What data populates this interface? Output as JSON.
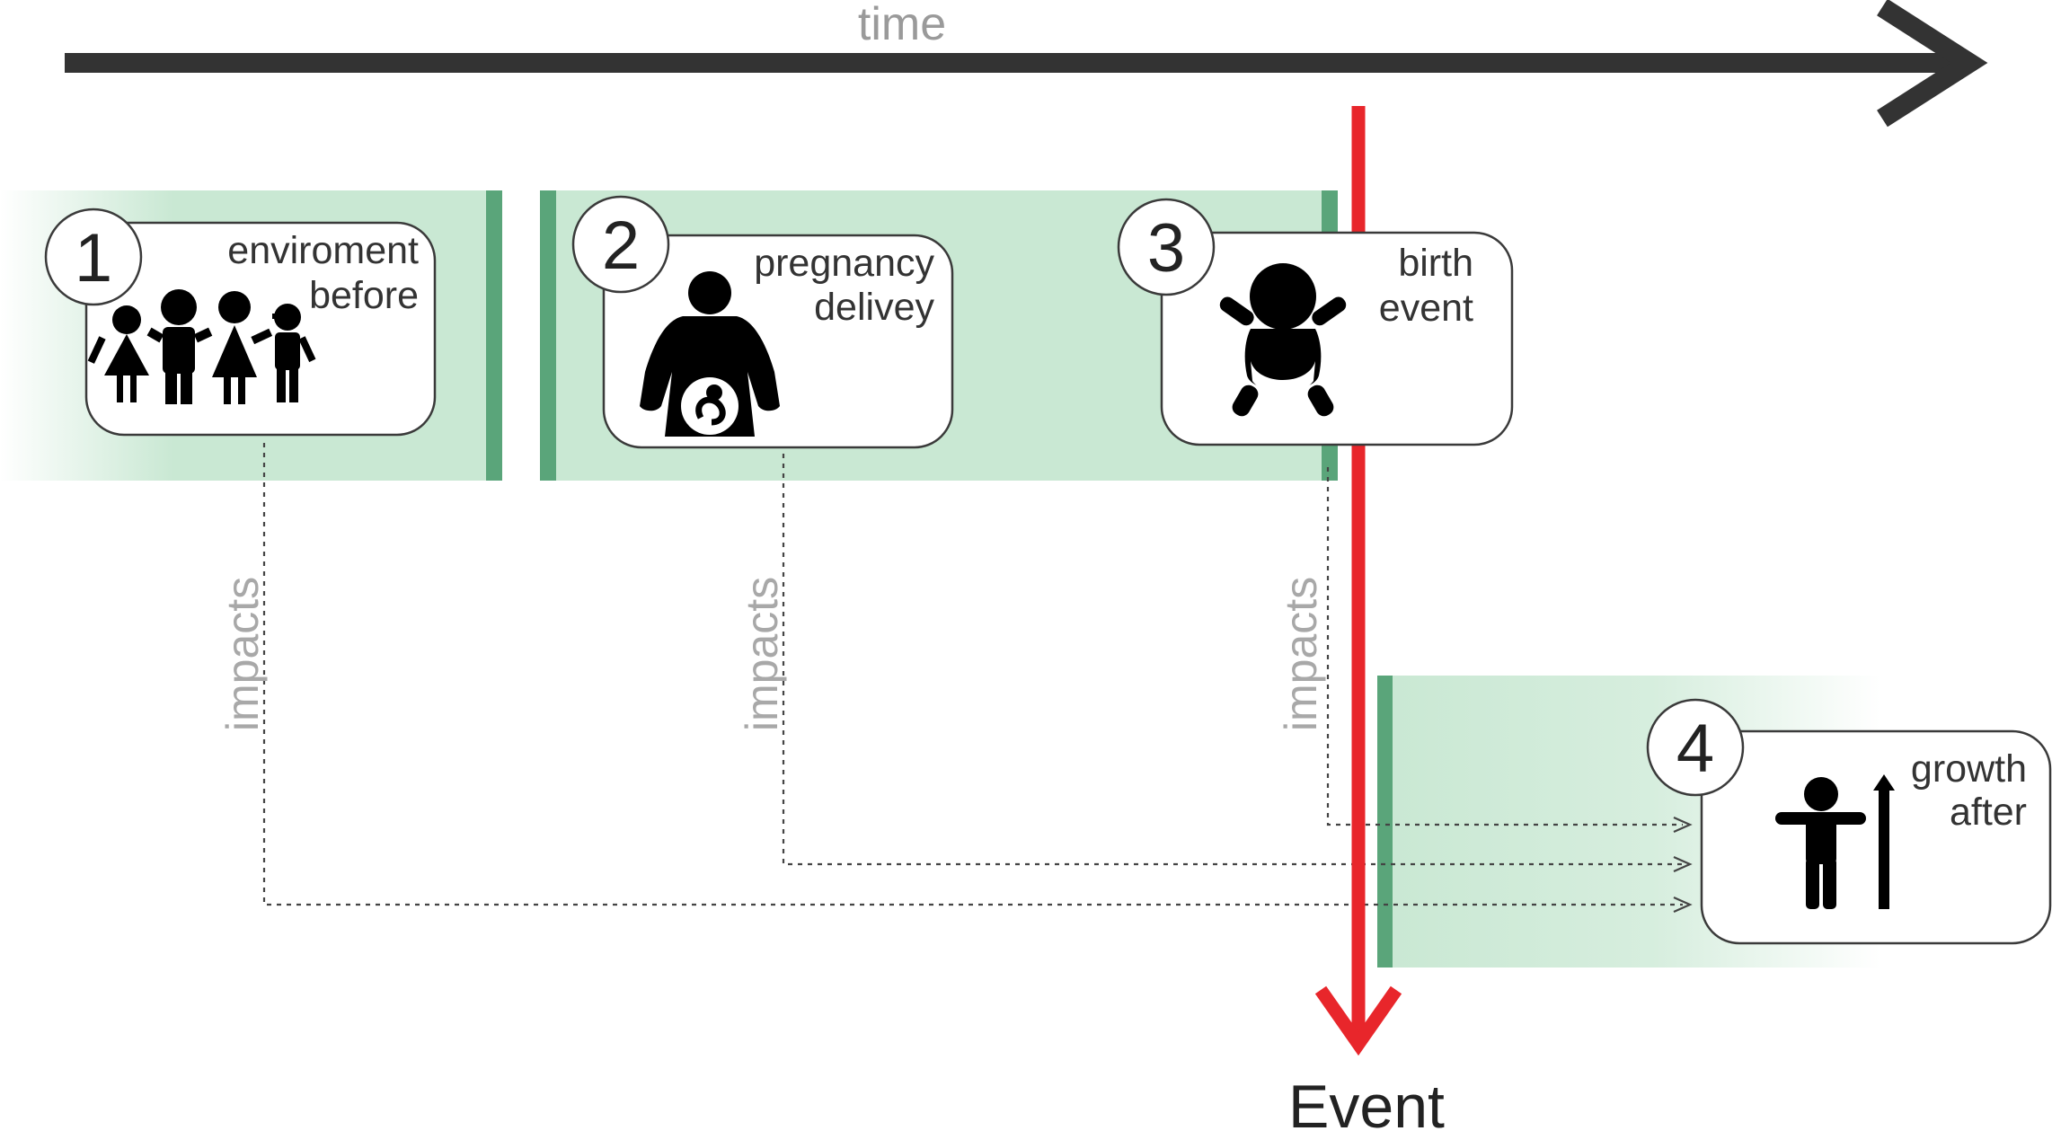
{
  "timeline": {
    "label": "time"
  },
  "event": {
    "label": "Event",
    "color": "#e8262b"
  },
  "colors": {
    "band": "#c9e8d3",
    "bar": "#5aa57a",
    "arrow": "#333333"
  },
  "stages": [
    {
      "number": "1",
      "line1": "enviroment",
      "line2": "before",
      "icon": "family-icon"
    },
    {
      "number": "2",
      "line1": "pregnancy",
      "line2": "delivey",
      "icon": "pregnant-woman-icon"
    },
    {
      "number": "3",
      "line1": "birth",
      "line2": "event",
      "icon": "baby-icon"
    },
    {
      "number": "4",
      "line1": "growth",
      "line2": "after",
      "icon": "growing-child-icon"
    }
  ],
  "impacts": [
    "impacts",
    "impacts",
    "impacts"
  ]
}
